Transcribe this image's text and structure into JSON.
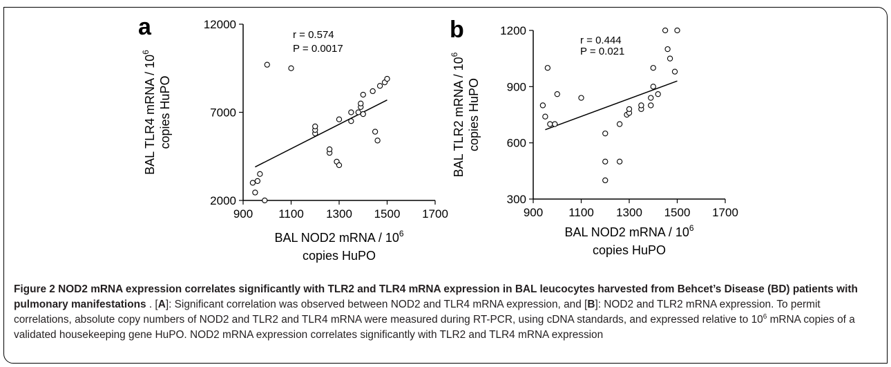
{
  "figure": {
    "label": "Figure 2",
    "caption_title": "NOD2 mRNA expression correlates significantly with TLR2 and TLR4 mRNA expression in BAL leucocytes harvested from Behcet’s Disease (BD) patients with pulmonary manifestations",
    "caption_body": [
      {
        "t": ". [",
        "b": false
      },
      {
        "t": "A",
        "b": true
      },
      {
        "t": "]: Significant correlation was observed between NOD2 and TLR4 mRNA expression, and [",
        "b": false
      },
      {
        "t": "B",
        "b": true
      },
      {
        "t": "]: NOD2 and TLR2 mRNA expression. To permit correlations, absolute copy numbers of NOD2 and TLR2 and TLR4 mRNA were measured during RT-PCR, using cDNA standards, and expressed relative to 10",
        "b": false
      },
      {
        "t": "6",
        "b": false,
        "sup": true
      },
      {
        "t": " mRNA copies of a validated housekeeping gene HuPO. NOD2 mRNA expression correlates significantly with TLR2 and TLR4 mRNA expression",
        "b": false
      }
    ]
  },
  "chart_data": [
    {
      "type": "scatter",
      "panel": "a",
      "xlabel_line1": "BAL NOD2 mRNA / 10",
      "xlabel_sup": "6",
      "xlabel_line2": "copies HuPO",
      "ylabel_line1": "BAL TLR4 mRNA / 10",
      "ylabel_sup": "6",
      "ylabel_line2": "copies HuPO",
      "xlim": [
        900,
        1700
      ],
      "ylim": [
        2000,
        12000
      ],
      "xticks": [
        900,
        1100,
        1300,
        1500,
        1700
      ],
      "yticks": [
        2000,
        7000,
        12000
      ],
      "stat_r": "r = 0.574",
      "stat_p": "P = 0.0017",
      "trend": {
        "x": [
          950,
          1500
        ],
        "y": [
          3900,
          7700
        ]
      },
      "points": [
        {
          "x": 940,
          "y": 3000
        },
        {
          "x": 950,
          "y": 2450
        },
        {
          "x": 960,
          "y": 3100
        },
        {
          "x": 970,
          "y": 3500
        },
        {
          "x": 990,
          "y": 2000
        },
        {
          "x": 1000,
          "y": 9700
        },
        {
          "x": 1100,
          "y": 9500
        },
        {
          "x": 1200,
          "y": 5800
        },
        {
          "x": 1200,
          "y": 6000
        },
        {
          "x": 1200,
          "y": 6200
        },
        {
          "x": 1260,
          "y": 4700
        },
        {
          "x": 1260,
          "y": 4900
        },
        {
          "x": 1290,
          "y": 4200
        },
        {
          "x": 1300,
          "y": 4000
        },
        {
          "x": 1300,
          "y": 6600
        },
        {
          "x": 1350,
          "y": 6500
        },
        {
          "x": 1350,
          "y": 7000
        },
        {
          "x": 1380,
          "y": 7000
        },
        {
          "x": 1390,
          "y": 7300
        },
        {
          "x": 1390,
          "y": 7500
        },
        {
          "x": 1400,
          "y": 6900
        },
        {
          "x": 1400,
          "y": 8000
        },
        {
          "x": 1440,
          "y": 8200
        },
        {
          "x": 1450,
          "y": 5900
        },
        {
          "x": 1460,
          "y": 5400
        },
        {
          "x": 1470,
          "y": 8500
        },
        {
          "x": 1490,
          "y": 8700
        },
        {
          "x": 1500,
          "y": 8900
        }
      ]
    },
    {
      "type": "scatter",
      "panel": "b",
      "xlabel_line1": "BAL NOD2 mRNA / 10",
      "xlabel_sup": "6",
      "xlabel_line2": "copies HuPO",
      "ylabel_line1": "BAL TLR2 mRNA / 10",
      "ylabel_sup": "6",
      "ylabel_line2": "copies HuPO",
      "xlim": [
        900,
        1700
      ],
      "ylim": [
        300,
        1200
      ],
      "xticks": [
        900,
        1100,
        1300,
        1500,
        1700
      ],
      "yticks": [
        300,
        600,
        900,
        1200
      ],
      "stat_r": "r = 0.444",
      "stat_p": "P = 0.021",
      "trend": {
        "x": [
          950,
          1500
        ],
        "y": [
          670,
          930
        ]
      },
      "points": [
        {
          "x": 940,
          "y": 800
        },
        {
          "x": 950,
          "y": 740
        },
        {
          "x": 960,
          "y": 1000
        },
        {
          "x": 970,
          "y": 700
        },
        {
          "x": 990,
          "y": 700
        },
        {
          "x": 1000,
          "y": 860
        },
        {
          "x": 1100,
          "y": 840
        },
        {
          "x": 1200,
          "y": 400
        },
        {
          "x": 1200,
          "y": 500
        },
        {
          "x": 1200,
          "y": 650
        },
        {
          "x": 1260,
          "y": 500
        },
        {
          "x": 1260,
          "y": 700
        },
        {
          "x": 1290,
          "y": 750
        },
        {
          "x": 1300,
          "y": 760
        },
        {
          "x": 1300,
          "y": 780
        },
        {
          "x": 1350,
          "y": 780
        },
        {
          "x": 1350,
          "y": 800
        },
        {
          "x": 1390,
          "y": 800
        },
        {
          "x": 1390,
          "y": 840
        },
        {
          "x": 1400,
          "y": 900
        },
        {
          "x": 1400,
          "y": 1000
        },
        {
          "x": 1420,
          "y": 860
        },
        {
          "x": 1450,
          "y": 1200
        },
        {
          "x": 1460,
          "y": 1100
        },
        {
          "x": 1470,
          "y": 1050
        },
        {
          "x": 1490,
          "y": 980
        },
        {
          "x": 1500,
          "y": 1200
        }
      ]
    }
  ]
}
